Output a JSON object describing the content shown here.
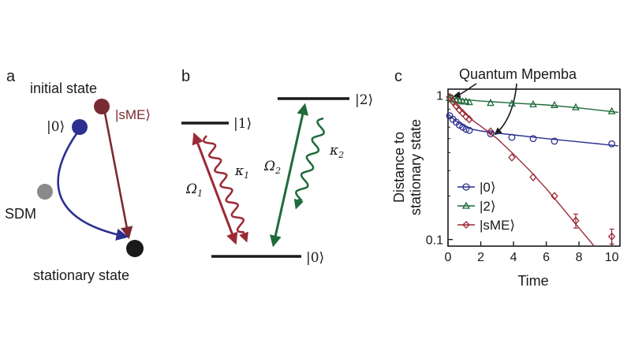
{
  "panel_a": {
    "letter": "a",
    "initial_state": "initial state",
    "ket0": "|0⟩",
    "sME": "|sME⟩",
    "sdm": "SDM",
    "stationary": "stationary state",
    "colors": {
      "ket0": "#2b2f8f",
      "sME": "#7a2a32",
      "sdm": "#8a8a8a",
      "stationary": "#1a1a1a"
    }
  },
  "panel_b": {
    "letter": "b",
    "ket1": "|1⟩",
    "ket2": "|2⟩",
    "ket0": "|0⟩",
    "omega1": "Ω",
    "omega1_sub": "1",
    "kappa1": "κ",
    "kappa1_sub": "1",
    "omega2": "Ω",
    "omega2_sub": "2",
    "kappa2": "κ",
    "kappa2_sub": "2",
    "colors": {
      "red": "#9b2a35",
      "green": "#1f6b3a"
    }
  },
  "panel_c": {
    "letter": "c",
    "annotation": "Quantum Mpemba",
    "xlabel": "Time",
    "ylabel_line1": "Distance to",
    "ylabel_line2": "stationary state"
  },
  "chart_data": {
    "type": "scatter",
    "title": "",
    "xlabel": "Time",
    "ylabel": "Distance to stationary state",
    "xlim": [
      0,
      10.5
    ],
    "ylim": [
      0.09,
      1.1
    ],
    "yscale": "log",
    "xticks": [
      0,
      2,
      4,
      6,
      8,
      10
    ],
    "yticks": [
      {
        "value": 1,
        "label": "1"
      },
      {
        "value": 0.1,
        "label": "0.1"
      }
    ],
    "legend_position": "bottom-left",
    "annotation": "Quantum Mpemba",
    "series": [
      {
        "name": "|0⟩",
        "color": "#2b2f8f",
        "marker": "circle",
        "fill_color": "#4a4fd0",
        "points": [
          {
            "x": 0.1,
            "y": 0.72
          },
          {
            "x": 0.3,
            "y": 0.68
          },
          {
            "x": 0.5,
            "y": 0.65
          },
          {
            "x": 0.7,
            "y": 0.62
          },
          {
            "x": 0.9,
            "y": 0.6
          },
          {
            "x": 1.1,
            "y": 0.58
          },
          {
            "x": 1.3,
            "y": 0.57
          },
          {
            "x": 2.6,
            "y": 0.54
          },
          {
            "x": 3.9,
            "y": 0.51
          },
          {
            "x": 5.2,
            "y": 0.5
          },
          {
            "x": 6.5,
            "y": 0.48
          },
          {
            "x": 10,
            "y": 0.46
          }
        ],
        "fit": [
          {
            "x": 0,
            "y": 0.74
          },
          {
            "x": 0.5,
            "y": 0.66
          },
          {
            "x": 1,
            "y": 0.61
          },
          {
            "x": 1.5,
            "y": 0.58
          },
          {
            "x": 2,
            "y": 0.565
          },
          {
            "x": 3,
            "y": 0.545
          },
          {
            "x": 4,
            "y": 0.53
          },
          {
            "x": 6,
            "y": 0.5
          },
          {
            "x": 8,
            "y": 0.475
          },
          {
            "x": 10.4,
            "y": 0.445
          }
        ]
      },
      {
        "name": "|2⟩",
        "color": "#1f6b3a",
        "marker": "triangle",
        "fill_color": "#3aa86a",
        "points": [
          {
            "x": 0.1,
            "y": 0.95
          },
          {
            "x": 0.3,
            "y": 0.93
          },
          {
            "x": 0.5,
            "y": 0.92
          },
          {
            "x": 0.7,
            "y": 0.91
          },
          {
            "x": 0.9,
            "y": 0.9
          },
          {
            "x": 1.1,
            "y": 0.9
          },
          {
            "x": 1.3,
            "y": 0.89
          },
          {
            "x": 2.6,
            "y": 0.88
          },
          {
            "x": 3.9,
            "y": 0.87
          },
          {
            "x": 5.2,
            "y": 0.86
          },
          {
            "x": 6.5,
            "y": 0.85
          },
          {
            "x": 7.8,
            "y": 0.82
          },
          {
            "x": 10,
            "y": 0.77
          }
        ],
        "fit": [
          {
            "x": 0,
            "y": 0.96
          },
          {
            "x": 1,
            "y": 0.93
          },
          {
            "x": 2,
            "y": 0.91
          },
          {
            "x": 4,
            "y": 0.88
          },
          {
            "x": 6,
            "y": 0.855
          },
          {
            "x": 8,
            "y": 0.815
          },
          {
            "x": 10.4,
            "y": 0.76
          }
        ]
      },
      {
        "name": "|sME⟩",
        "color": "#9b2a35",
        "marker": "diamond",
        "fill_color": "#d04a5a",
        "points": [
          {
            "x": 0.1,
            "y": 0.97
          },
          {
            "x": 0.3,
            "y": 0.9
          },
          {
            "x": 0.5,
            "y": 0.84
          },
          {
            "x": 0.7,
            "y": 0.79
          },
          {
            "x": 0.9,
            "y": 0.75
          },
          {
            "x": 1.1,
            "y": 0.71
          },
          {
            "x": 1.3,
            "y": 0.68
          },
          {
            "x": 2.6,
            "y": 0.56
          },
          {
            "x": 3.9,
            "y": 0.37
          },
          {
            "x": 5.2,
            "y": 0.27
          },
          {
            "x": 6.5,
            "y": 0.2
          },
          {
            "x": 7.8,
            "y": 0.135
          },
          {
            "x": 10,
            "y": 0.105
          }
        ],
        "error_bars": [
          {
            "x": 7.8,
            "low": 0.12,
            "high": 0.15
          },
          {
            "x": 10,
            "low": 0.093,
            "high": 0.118
          }
        ],
        "fit": [
          {
            "x": 0,
            "y": 0.99
          },
          {
            "x": 0.5,
            "y": 0.86
          },
          {
            "x": 1,
            "y": 0.75
          },
          {
            "x": 1.5,
            "y": 0.67
          },
          {
            "x": 2,
            "y": 0.61
          },
          {
            "x": 3,
            "y": 0.5
          },
          {
            "x": 4,
            "y": 0.39
          },
          {
            "x": 5,
            "y": 0.3
          },
          {
            "x": 6,
            "y": 0.225
          },
          {
            "x": 7,
            "y": 0.165
          },
          {
            "x": 8,
            "y": 0.12
          },
          {
            "x": 9,
            "y": 0.088
          }
        ]
      }
    ]
  }
}
